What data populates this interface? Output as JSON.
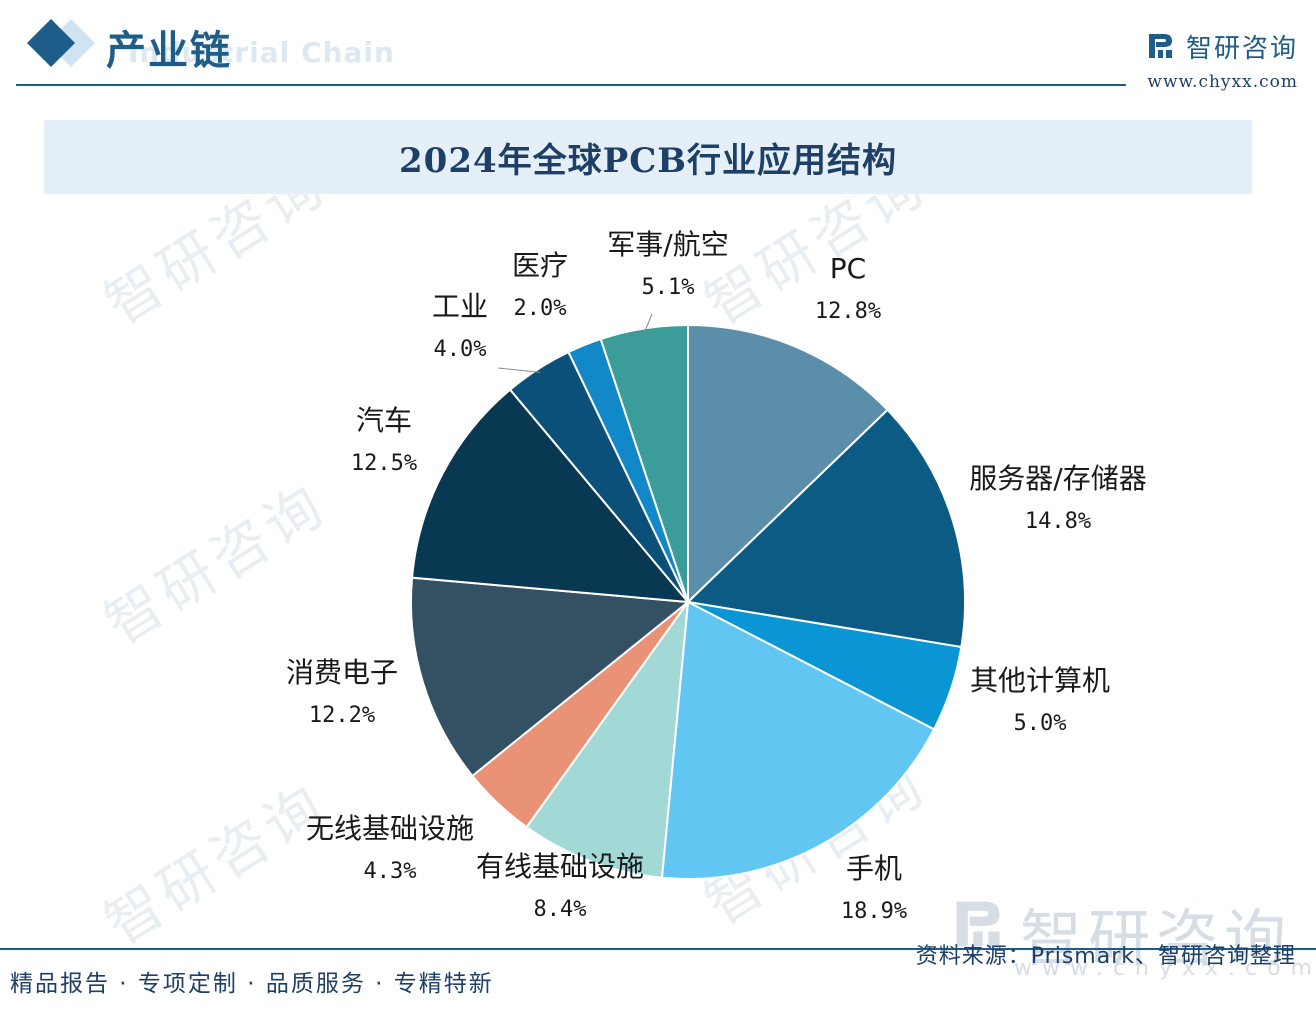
{
  "header": {
    "section_title": "产业链",
    "section_subtitle": "Industrial Chain",
    "brand_name": "智研咨询",
    "brand_url": "www.chyxx.com"
  },
  "watermark": {
    "text": "智研咨询",
    "url": "www.chyxx.com"
  },
  "footer": {
    "source": "资料来源：Prismark、智研咨询整理",
    "slogan": "精品报告 · 专项定制 · 品质服务 · 专精特新"
  },
  "colors": {
    "brand": "#1e5c8a"
  },
  "chart_data": {
    "type": "pie",
    "title": "2024年全球PCB行业应用结构",
    "start_angle_deg": 0,
    "direction": "clockwise",
    "slices": [
      {
        "label": "PC",
        "value": 12.8,
        "display": "12.8%",
        "color": "#5b8ea8"
      },
      {
        "label": "服务器/存储器",
        "value": 14.8,
        "display": "14.8%",
        "color": "#0b5b85"
      },
      {
        "label": "其他计算机",
        "value": 5.0,
        "display": "5.0%",
        "color": "#0a96d4"
      },
      {
        "label": "手机",
        "value": 18.9,
        "display": "18.9%",
        "color": "#62c6f2"
      },
      {
        "label": "有线基础设施",
        "value": 8.4,
        "display": "8.4%",
        "color": "#a2d9d6"
      },
      {
        "label": "无线基础设施",
        "value": 4.3,
        "display": "4.3%",
        "color": "#e99275"
      },
      {
        "label": "消费电子",
        "value": 12.2,
        "display": "12.2%",
        "color": "#345063"
      },
      {
        "label": "汽车",
        "value": 12.5,
        "display": "12.5%",
        "color": "#083852"
      },
      {
        "label": "工业",
        "value": 4.0,
        "display": "4.0%",
        "color": "#0a5079"
      },
      {
        "label": "医疗",
        "value": 2.0,
        "display": "2.0%",
        "color": "#1188c8"
      },
      {
        "label": "军事/航空",
        "value": 5.1,
        "display": "5.1%",
        "color": "#3b9c99"
      }
    ]
  }
}
